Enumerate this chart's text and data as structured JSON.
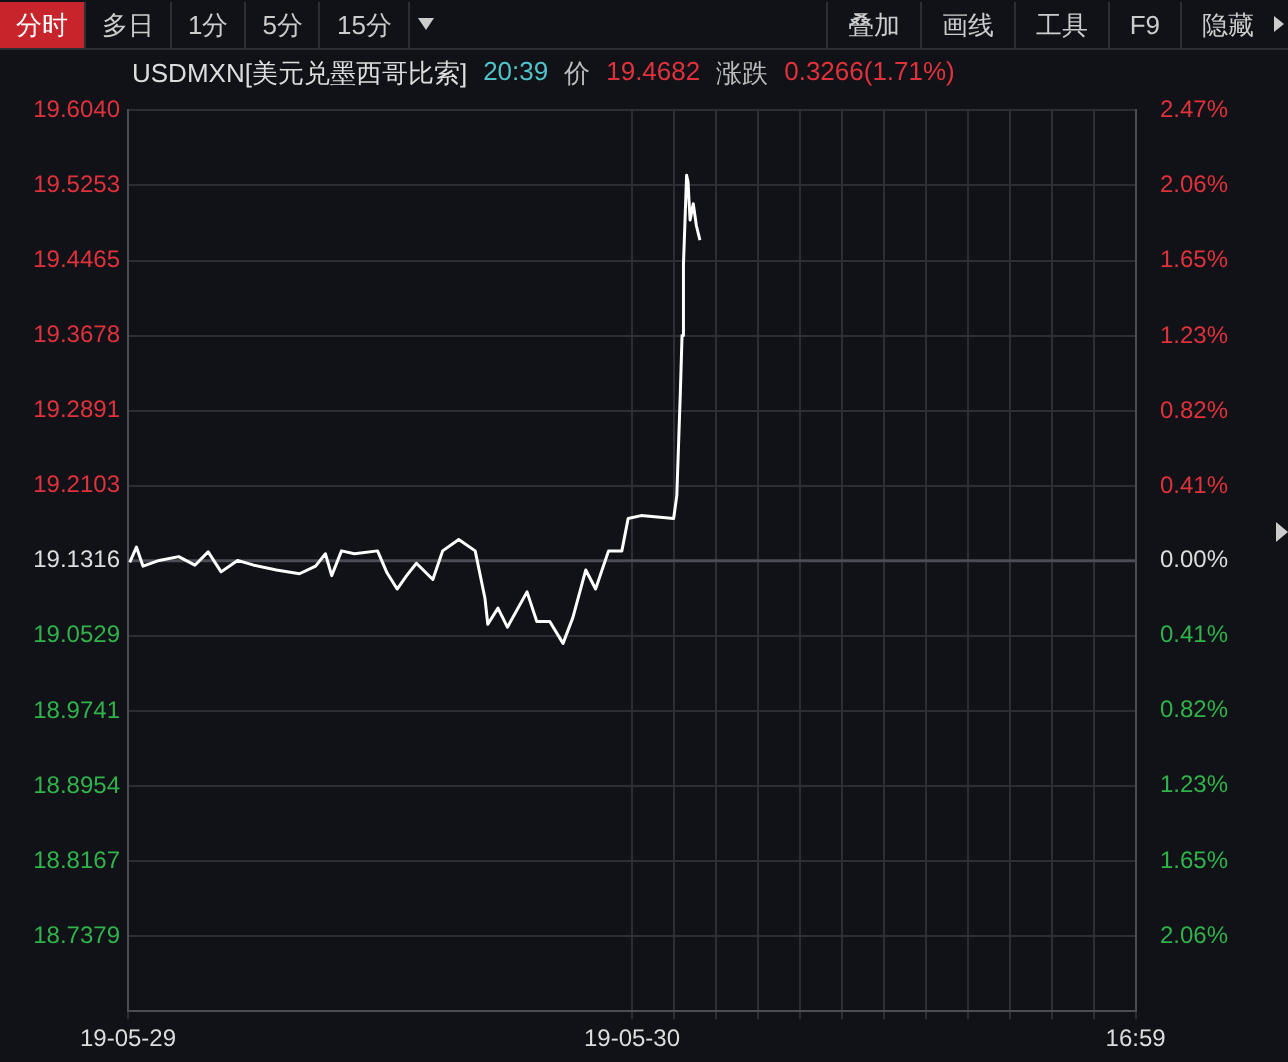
{
  "chart_data": {
    "type": "line",
    "title": "USDMXN[美元兑墨西哥比索]",
    "subtitle": "20:39",
    "annotations": [
      "分时",
      "多日",
      "1分",
      "5分",
      "15分",
      "叠加",
      "画线",
      "工具",
      "F9",
      "隐藏",
      "价",
      "19.4682",
      "涨跌",
      "0.3266(1.71%)"
    ],
    "x": [
      "--05-28T17:05",
      "--05-28T17:24",
      "--05-28T17:43",
      "--05-28T18:29",
      "--05-28T19:25",
      "--05-28T20:11",
      "--05-28T20:49",
      "--05-28T21:26",
      "--05-28T22:13",
      "--05-28T22:59",
      "--05-29T00:04",
      "--05-29T01:10",
      "--05-29T01:56",
      "--05-29T02:24",
      "--05-29T02:42",
      "--05-29T03:10",
      "--05-29T03:47",
      "--05-29T04:53",
      "--05-29T05:20",
      "--05-29T05:49",
      "--05-29T06:16",
      "--05-29T06:44",
      "--05-29T07:31",
      "--05-29T07:59",
      "--05-29T08:45",
      "--05-29T09:32",
      "--05-29T10:00",
      "--05-29T10:08",
      "--05-29T10:37",
      "--05-29T11:04",
      "--05-29T12:00",
      "--05-29T12:28",
      "--05-29T13:05",
      "--05-29T13:43",
      "--05-29T14:11",
      "--05-29T14:48",
      "--05-29T15:16",
      "--05-29T15:53",
      "--05-29T16:31",
      "--05-29T16:49",
      "--05-29T17:26",
      "--05-29T18:59",
      "--05-29T19:08",
      "--05-29T19:18",
      "--05-29T19:23",
      "--05-29T19:27",
      "--05-29T19:36",
      "--05-29T19:40",
      "--05-29T19:46",
      "--05-29T19:55",
      "--05-29T20:04",
      "--05-29T20:14"
    ],
    "series": [
      {
        "color": "#ffffff",
        "values": [
          19.13,
          19.146,
          19.126,
          19.132,
          19.136,
          19.127,
          19.141,
          19.12,
          19.132,
          19.127,
          19.122,
          19.118,
          19.126,
          19.139,
          19.116,
          19.142,
          19.139,
          19.142,
          19.119,
          19.102,
          19.116,
          19.129,
          19.112,
          19.142,
          19.154,
          19.142,
          19.092,
          19.065,
          19.082,
          19.062,
          19.099,
          19.068,
          19.068,
          19.045,
          19.072,
          19.122,
          19.102,
          19.142,
          19.142,
          19.176,
          19.179,
          19.176,
          19.2,
          19.307,
          19.368,
          19.442,
          19.536,
          19.529,
          19.489,
          19.506,
          19.483,
          19.468
        ]
      }
    ],
    "xlim": [
      "--05-28T17:00",
      "--05-30T17:00"
    ],
    "xticks": [
      {
        "value": "--05-28T17:00",
        "label": "19-05-29"
      },
      {
        "value": "--05-29T17:00",
        "label": "19-05-30"
      },
      {
        "value": "--05-29T19:00",
        "label": null
      },
      {
        "value": "--05-29T21:00",
        "label": null
      },
      {
        "value": "--05-29T23:00",
        "label": null
      },
      {
        "value": "--05-30T01:00",
        "label": null
      },
      {
        "value": "--05-30T03:00",
        "label": null
      },
      {
        "value": "--05-30T05:00",
        "label": null
      },
      {
        "value": "--05-30T07:00",
        "label": null
      },
      {
        "value": "--05-30T09:00",
        "label": null
      },
      {
        "value": "--05-30T11:00",
        "label": null
      },
      {
        "value": "--05-30T13:00",
        "label": null
      },
      {
        "value": "--05-30T15:00",
        "label": null
      },
      {
        "value": "--05-30T16:59",
        "label": "16:59"
      }
    ],
    "ylim": [
      18.6592,
      19.604
    ],
    "yticks": [
      {
        "value": 18.7379,
        "label": "18.7379"
      },
      {
        "value": 18.8167,
        "label": "18.8167"
      },
      {
        "value": 18.8954,
        "label": "18.8954"
      },
      {
        "value": 18.9741,
        "label": "18.9741"
      },
      {
        "value": 19.0529,
        "label": "19.0529"
      },
      {
        "value": 19.1316,
        "label": "19.1316"
      },
      {
        "value": 19.2103,
        "label": "19.2103"
      },
      {
        "value": 19.2891,
        "label": "19.2891"
      },
      {
        "value": 19.3678,
        "label": "19.3678"
      },
      {
        "value": 19.4465,
        "label": "19.4465"
      },
      {
        "value": 19.5253,
        "label": "19.5253"
      },
      {
        "value": 19.604,
        "label": "19.6040"
      }
    ],
    "y2lim": [
      -2.47,
      2.47
    ],
    "y2ticks": [
      {
        "value": -2.06,
        "label": "2.06%"
      },
      {
        "value": -1.65,
        "label": "1.65%"
      },
      {
        "value": -1.23,
        "label": "1.23%"
      },
      {
        "value": -0.82,
        "label": "0.82%"
      },
      {
        "value": -0.41,
        "label": "0.41%"
      },
      {
        "value": 0,
        "label": "0.00%"
      },
      {
        "value": 0.41,
        "label": "0.41%"
      },
      {
        "value": 0.82,
        "label": "0.82%"
      },
      {
        "value": 1.23,
        "label": "1.23%"
      },
      {
        "value": 1.65,
        "label": "1.65%"
      },
      {
        "value": 2.06,
        "label": "2.06%"
      },
      {
        "value": 2.47,
        "label": "2.47%"
      }
    ],
    "ref_lines": [
      {
        "axis": "y",
        "value": 19.1316,
        "color": "#4a4d55"
      }
    ],
    "grid": true,
    "legend": false,
    "marker": "none",
    "line_style": "solid"
  }
}
